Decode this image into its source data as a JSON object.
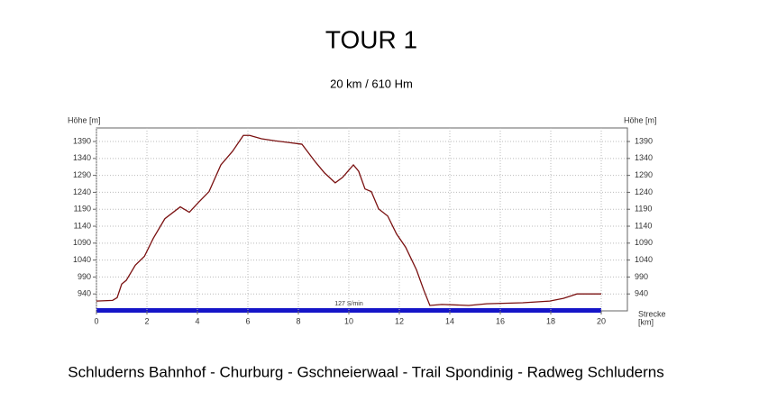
{
  "chart_data": {
    "type": "line",
    "title": "TOUR 1",
    "subtitle": "20 km / 610 Hm",
    "ylabel": "Höhe [m]",
    "xlabel_lines": [
      "Strecke",
      "[km]"
    ],
    "annotation": "127 S/min",
    "caption": "Schluderns Bahnhof - Churburg - Gschneierwaal - Trail Spondinig - Radweg Schluderns",
    "color": "#7a1010",
    "grid": true,
    "xlim": [
      0,
      21
    ],
    "xticks": [
      0,
      2,
      4,
      6,
      8,
      10,
      12,
      14,
      16,
      18,
      20
    ],
    "ylim": [
      890,
      1430
    ],
    "yticks": [
      940,
      990,
      1040,
      1090,
      1140,
      1190,
      1240,
      1290,
      1340,
      1390
    ],
    "x": [
      0,
      0.64,
      0.82,
      1.0,
      1.18,
      1.54,
      1.9,
      2.25,
      2.71,
      3.32,
      3.68,
      4.04,
      4.46,
      4.93,
      5.39,
      5.82,
      6.07,
      6.54,
      7.07,
      7.61,
      8.14,
      8.68,
      9.04,
      9.46,
      9.75,
      10.18,
      10.39,
      10.64,
      10.89,
      11.18,
      11.54,
      11.89,
      12.25,
      12.68,
      12.96,
      13.21,
      13.68,
      14.75,
      15.46,
      16.89,
      17.96,
      18.5,
      19.04,
      19.57,
      20
    ],
    "values": [
      919,
      921,
      929,
      969,
      980,
      1025,
      1051,
      1104,
      1162,
      1197,
      1181,
      1210,
      1242,
      1321,
      1361,
      1408,
      1408,
      1398,
      1392,
      1387,
      1382,
      1329,
      1297,
      1268,
      1284,
      1321,
      1302,
      1250,
      1242,
      1191,
      1170,
      1117,
      1078,
      1011,
      953,
      906,
      909,
      906,
      911,
      914,
      919,
      927,
      940,
      940,
      940
    ]
  }
}
